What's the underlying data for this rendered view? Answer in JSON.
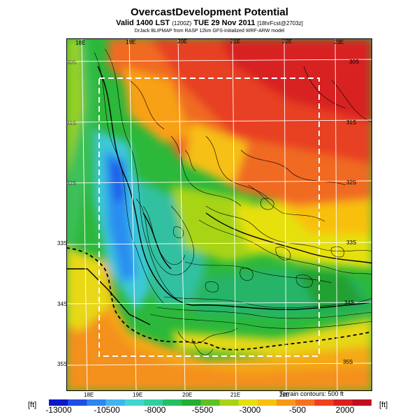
{
  "title": "OvercastDevelopment Potential",
  "subtitle": {
    "valid": "Valid 1400 LST",
    "code": "(1200Z)",
    "date": "TUE 29 Nov 2011",
    "forecast": "[18hrFcst@2703z]"
  },
  "credit": "DrJack BLIPMAP from RASP 12km GFS-initialized WRF-ARW model",
  "contour_note": "Terrain contours: 500 ft",
  "top_lon_labels": [
    "18E",
    "19E",
    "20E",
    "21E",
    "22E",
    "23E"
  ],
  "bottom_lon_labels": [
    "18E",
    "19E",
    "20E",
    "21E",
    "22E"
  ],
  "left_lat_labels": [
    "30S",
    "31S",
    "32S",
    "33S",
    "34S",
    "35S"
  ],
  "right_lat_labels": [
    "30S",
    "31S",
    "32S",
    "33S",
    "34S",
    "35S"
  ],
  "colorbar": {
    "unit_left": "[ft]",
    "unit_right": "[ft]",
    "tick_labels": [
      "-13000",
      "-10500",
      "-8000",
      "-5500",
      "-3000",
      "-500",
      "2000"
    ],
    "colors": [
      "#0a18c8",
      "#1e4ee6",
      "#2e86f0",
      "#3fb6ee",
      "#40d6d2",
      "#2ed0a0",
      "#22c060",
      "#22b030",
      "#60c020",
      "#a8d418",
      "#e6e010",
      "#f8c010",
      "#f89818",
      "#f87020",
      "#f04020",
      "#d82020",
      "#c01020"
    ]
  },
  "icons": [
    "domain-boundary-dashed",
    "lat-lon-grid",
    "terrain-contours"
  ]
}
